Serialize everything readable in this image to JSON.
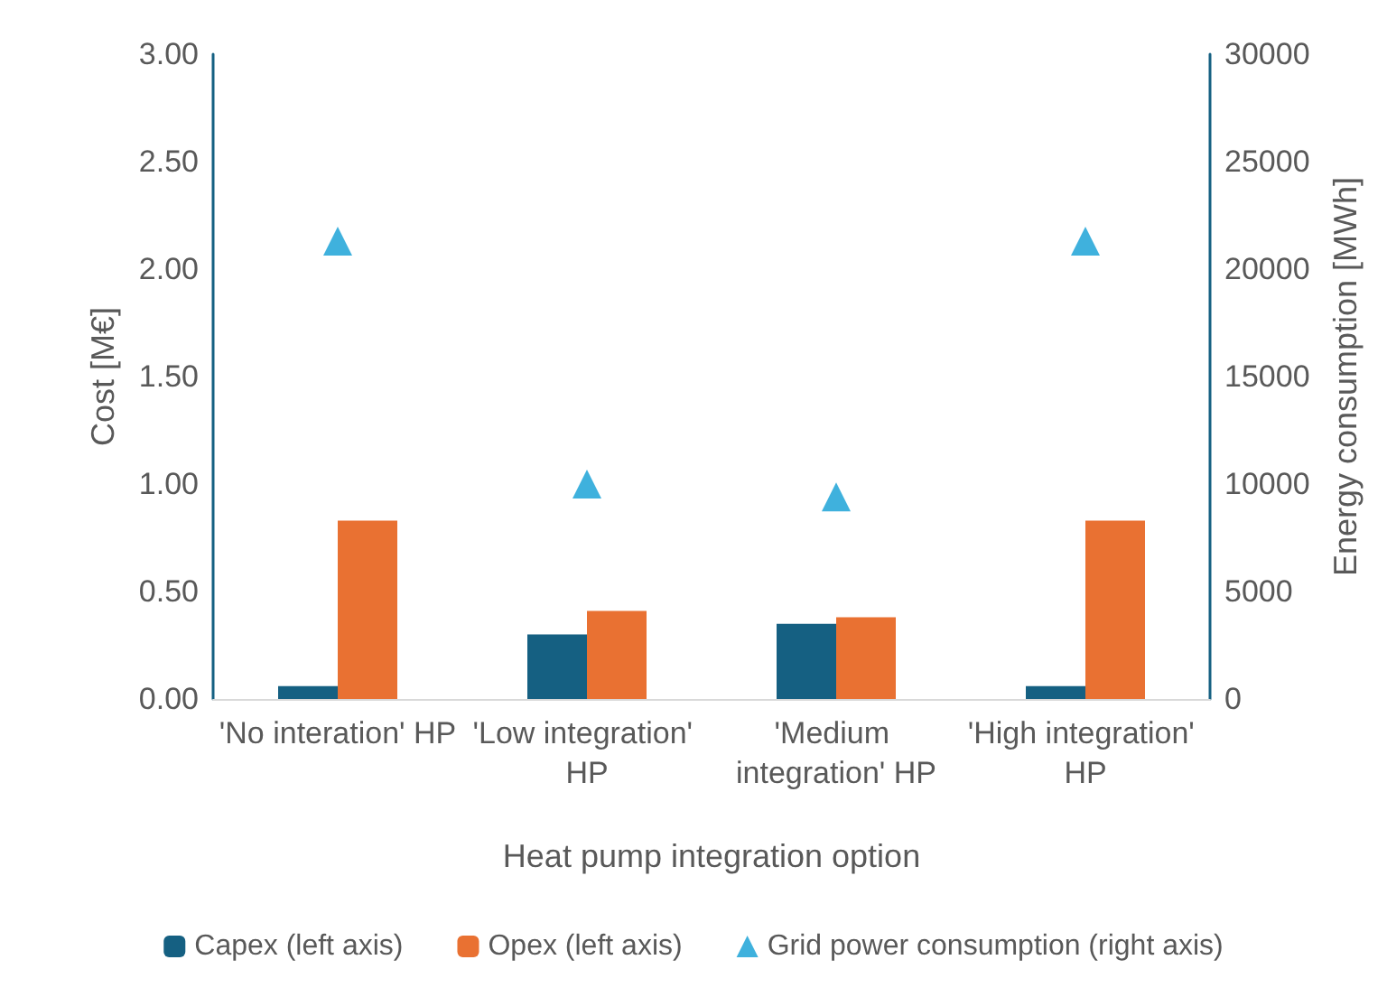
{
  "chart_data": {
    "type": "bar",
    "xlabel": "Heat pump integration option",
    "ylabel": "Cost [M€]",
    "y2label": "Energy consumption [MWh]",
    "categories": [
      "'No interation' HP",
      "'Low integration' HP",
      "'Medium integration' HP",
      "'High integration' HP"
    ],
    "series": [
      {
        "name": "Capex (left axis)",
        "color": "#156082",
        "values": [
          0.06,
          0.3,
          0.35,
          0.06
        ]
      },
      {
        "name": "Opex (left axis)",
        "color": "#e97132",
        "values": [
          0.83,
          0.41,
          0.38,
          0.83
        ]
      },
      {
        "name": "Grid power consumption (right axis)",
        "type": "scatter",
        "axis": "y2",
        "marker": "triangle",
        "color": "#0f9ed5",
        "values": [
          21300,
          10000,
          9400,
          21300
        ]
      }
    ],
    "ylim": [
      0,
      3
    ],
    "yticks": [
      {
        "value": 0,
        "label": "0.00"
      },
      {
        "value": 0.5,
        "label": "0.50"
      },
      {
        "value": 1,
        "label": "1.00"
      },
      {
        "value": 1.5,
        "label": "1.50"
      },
      {
        "value": 2,
        "label": "2.00"
      },
      {
        "value": 2.5,
        "label": "2.50"
      },
      {
        "value": 3,
        "label": "3.00"
      }
    ],
    "y2lim": [
      0,
      30000
    ],
    "y2ticks": [
      0,
      5000,
      10000,
      15000,
      20000,
      25000,
      30000
    ],
    "grid": false,
    "legend": "bottom"
  }
}
